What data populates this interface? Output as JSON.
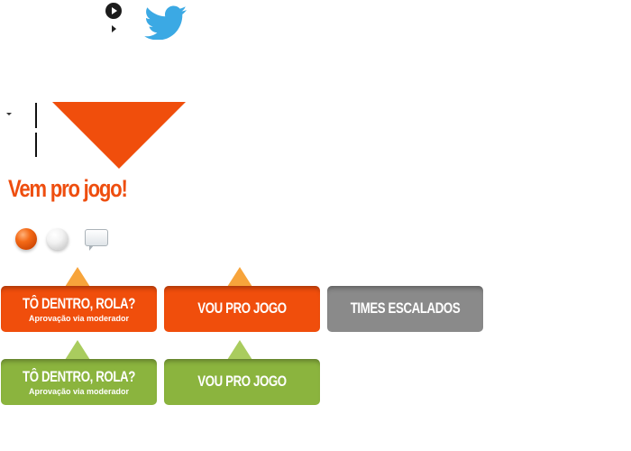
{
  "icons": {
    "play_large": "play-circle-icon",
    "play_small": "play-triangle-icon",
    "twitter": "twitter-bird-icon",
    "dropdown": "caret-down-icon",
    "ball_orange": "orange-ball-icon",
    "ball_white": "white-ball-icon",
    "comment": "speech-bubble-icon"
  },
  "heading": "Vem pro jogo!",
  "buttons": {
    "row1": [
      {
        "label": "TÔ DENTRO, ROLA?",
        "sub": "Aprovação via moderador",
        "color": "#f04e0c"
      },
      {
        "label": "VOU PRO JOGO",
        "color": "#f04e0c"
      },
      {
        "label": "TIMES ESCALADOS",
        "color": "#8a8a8a"
      }
    ],
    "row2": [
      {
        "label": "TÔ DENTRO, ROLA?",
        "sub": "Aprovação via moderador",
        "color": "#8bb43e"
      },
      {
        "label": "VOU PRO JOGO",
        "color": "#8bb43e"
      }
    ]
  },
  "colors": {
    "accent": "#f04e0c",
    "green": "#8bb43e",
    "gray": "#8a8a8a",
    "twitter_blue": "#3ba9e4"
  }
}
